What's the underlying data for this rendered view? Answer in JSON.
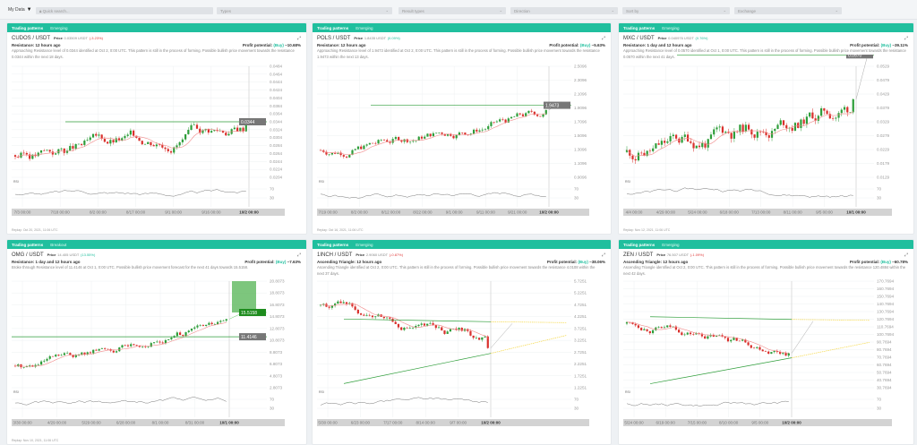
{
  "filters": {
    "my_data": "My Data",
    "filter_icon": "filter-icon",
    "search_placeholder": "Quick search...",
    "types": "Types",
    "result_types": "Result types",
    "direction": "Direction",
    "sort_by": "Sort by",
    "exchange": "Exchange"
  },
  "colors": {
    "header": "#20bf9e",
    "up": "#2e9e3a",
    "down": "#d9302c",
    "ma": "#f08a8a",
    "triangle_projection": "#f5d94a",
    "positive": "#20bf9e",
    "negative": "#e03a3a"
  },
  "cards": [
    {
      "tab1": "Trading patterns",
      "tab2": "Emerging",
      "pair": "CUDOS / USDT",
      "price_label": "Price",
      "price": "0.03509 USDT",
      "change": "(-3.23%)",
      "change_dir": "down",
      "pattern": "Resistance: 12 hours ago",
      "profit_label": "Profit potential:",
      "profit_side": "(Buy)",
      "profit": "~10.68%",
      "description": "Approaching Resistance level of 0.0344 identified at Oct 2, 0:00 UTC. This pattern is still in the process of forming. Possible bullish price movement towards the resistance 0.0344 within the next 18 days.",
      "yticks": [
        "0.0484",
        "0.0464",
        "0.0444",
        "0.0424",
        "0.0404",
        "0.0384",
        "0.0364",
        "0.0344",
        "0.0324",
        "0.0304",
        "0.0284",
        "0.0264",
        "0.0244",
        "0.0224",
        "0.0204"
      ],
      "level_label": "0.0344",
      "level": 0.0344,
      "xticks": [
        "7/3 00:00",
        "7/18 00:00",
        "8/2 00:00",
        "8/17 00:00",
        "9/1 00:00",
        "9/16 00:00",
        "10/2 00:00"
      ],
      "rsi_label": "RSI",
      "rsi_ticks": [
        "70",
        "30"
      ],
      "replay": "Replay: Oct 20, 2021, 11:06 UTC"
    },
    {
      "tab1": "Trading patterns",
      "tab2": "Emerging",
      "pair": "POLS / USDT",
      "price_label": "Price",
      "price": "1.8435 USDT",
      "change": "(0.09%)",
      "change_dir": "up",
      "pattern": "Resistance: 12 hours ago",
      "profit_label": "Profit potential:",
      "profit_side": "(Buy)",
      "profit": "~5.63%",
      "description": "Approaching Resistance level of 1.9473 identified at Oct 2, 0:00 UTC. This pattern is still in the process of forming. Possible bullish price movement towards the resistance 1.9473 within the next 13 days.",
      "yticks": [
        "2.5096",
        "2.3096",
        "2.1096",
        "1.9096",
        "1.7096",
        "1.5096",
        "1.3096",
        "1.1096",
        "0.9096"
      ],
      "level_label": "1.9473",
      "level": 1.9473,
      "xticks": [
        "7/19 00:00",
        "8/2 00:00",
        "8/12 00:00",
        "8/22 00:00",
        "9/1 00:00",
        "9/11 00:00",
        "9/21 00:00",
        "10/2 00:00"
      ],
      "rsi_label": "RSI",
      "rsi_ticks": [
        "70",
        "30"
      ],
      "replay": "Replay: Oct 16, 2021, 11:06 UTC"
    },
    {
      "tab1": "Trading patterns",
      "tab2": "Emerging",
      "pair": "MXC / USDT",
      "price_label": "Price",
      "price": "0.040976 USDT",
      "change": "(0.76%)",
      "change_dir": "up",
      "pattern": "Resistance: 1 day and 12 hours ago",
      "profit_label": "Profit potential:",
      "profit_side": "(Buy)",
      "profit": "~39.11%",
      "description": "Approaching Resistance level of 0.0570 identified at Oct 1, 0:00 UTC. This pattern is still in the process of forming. Possible bullish price movement towards the resistance 0.0570 within the next 41 days.",
      "yticks": [
        "0.0529",
        "0.0479",
        "0.0429",
        "0.0379",
        "0.0329",
        "0.0279",
        "0.0229",
        "0.0179",
        "0.0129"
      ],
      "level_label": "0.0570",
      "level": 0.057,
      "xticks": [
        "4/4 00:00",
        "4/29 00:00",
        "5/24 00:00",
        "6/18 00:00",
        "7/13 00:00",
        "8/11 00:00",
        "9/5 00:00",
        "10/1 00:00"
      ],
      "rsi_label": "RSI",
      "rsi_ticks": [
        "70",
        "30"
      ],
      "replay": "Replay: Nov 12, 2021, 11:06 UTC"
    },
    {
      "tab1": "Trading patterns",
      "tab2": "Breakout",
      "pair": "OMG / USDT",
      "price_label": "Price",
      "price": "14.405 USDT",
      "change": "(13.55%)",
      "change_dir": "up",
      "pattern": "Resistance: 1 day and 12 hours ago",
      "profit_label": "Profit potential:",
      "profit_side": "(Buy)",
      "profit": "~7.63%",
      "description": "Broke through Resistance level of 11.4146 at Oct 1, 0:00 UTC. Possible bullish price movement forecast for the next 41 days towards 15.5158.",
      "yticks": [
        "20.8073",
        "18.8073",
        "16.8073",
        "14.8073",
        "12.8073",
        "10.8073",
        "8.8073",
        "6.8073",
        "4.8073",
        "2.8073"
      ],
      "level_label": "11.4146",
      "level": 11.4146,
      "target_label": "15.5158",
      "target": 15.5158,
      "xticks": [
        "3/30 00:00",
        "4/29 00:00",
        "5/29 00:00",
        "6/28 00:00",
        "8/1 00:00",
        "8/31 00:00",
        "10/1 00:00"
      ],
      "rsi_label": "RSI",
      "rsi_ticks": [
        "70",
        "30"
      ],
      "replay": "Replay: Nov 10, 2021, 11:06 UTC"
    },
    {
      "tab1": "Trading patterns",
      "tab2": "Emerging",
      "pair": "1INCH / USDT",
      "price_label": "Price",
      "price": "2.9060 USDT",
      "change": "(-0.87%)",
      "change_dir": "down",
      "pattern": "Ascending Triangle: 12 hours ago",
      "profit_label": "Profit potential:",
      "profit_side": "(Buy)",
      "profit": "~38.06%",
      "description": "Ascending Triangle identified at Oct 2, 0:00 UTC. This pattern is still in the process of forming. Possible bullish price movement towards the resistance 4.0108 within the next 37 days.",
      "yticks": [
        "5.7251",
        "5.2251",
        "4.7251",
        "4.2251",
        "3.7251",
        "3.2251",
        "2.7251",
        "2.2251",
        "1.7251",
        "1.2251"
      ],
      "level": 4.0108,
      "xticks": [
        "5/30 00:00",
        "6/23 00:00",
        "7/17 00:00",
        "8/14 00:00",
        "9/7 00:00",
        "10/2 00:00"
      ],
      "rsi_label": "RSI",
      "rsi_ticks": [
        "70",
        "30"
      ],
      "replay": ""
    },
    {
      "tab1": "Trading patterns",
      "tab2": "Emerging",
      "pair": "ZEN / USDT",
      "price_label": "Price",
      "price": "76.507 USDT",
      "change": "(-1.09%)",
      "change_dir": "down",
      "pattern": "Ascending Triangle: 12 hours ago",
      "profit_label": "Profit potential:",
      "profit_side": "(Buy)",
      "profit": "~60.78%",
      "description": "Ascending Triangle identified at Oct 2, 0:00 UTC. This pattern is still in the process of forming. Possible bullish price movement towards the resistance 120.4884 within the next 42 days.",
      "yticks": [
        "170.7694",
        "160.7694",
        "150.7694",
        "140.7694",
        "130.7694",
        "120.7694",
        "110.7694",
        "100.7694",
        "90.7694",
        "80.7694",
        "70.7694",
        "60.7694",
        "50.7694",
        "40.7694",
        "30.7694"
      ],
      "level": 120.4884,
      "xticks": [
        "5/24 00:00",
        "6/19 00:00",
        "7/15 00:00",
        "8/10 00:00",
        "9/5 00:00",
        "10/2 00:00"
      ],
      "rsi_label": "RSI",
      "rsi_ticks": [
        "70",
        "30"
      ],
      "replay": ""
    }
  ]
}
